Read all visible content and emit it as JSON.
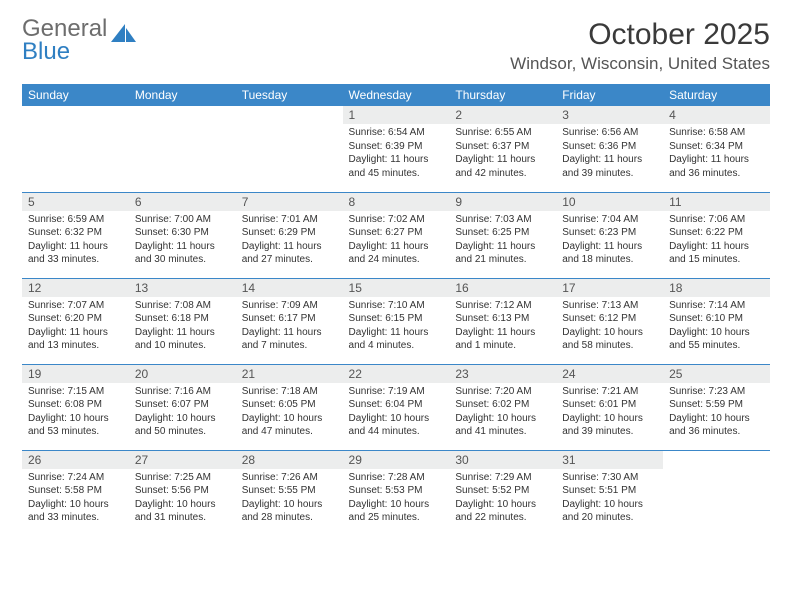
{
  "logo": {
    "word1": "General",
    "word2": "Blue"
  },
  "title": "October 2025",
  "location": "Windsor, Wisconsin, United States",
  "colors": {
    "header_bg": "#3b87c8",
    "header_text": "#ffffff",
    "daynum_bg": "#eceded",
    "border": "#3b87c8",
    "logo_gray": "#6d6d6d",
    "logo_blue": "#2f7fc2"
  },
  "day_headers": [
    "Sunday",
    "Monday",
    "Tuesday",
    "Wednesday",
    "Thursday",
    "Friday",
    "Saturday"
  ],
  "weeks": [
    [
      null,
      null,
      null,
      {
        "n": "1",
        "sunrise": "Sunrise: 6:54 AM",
        "sunset": "Sunset: 6:39 PM",
        "day1": "Daylight: 11 hours",
        "day2": "and 45 minutes."
      },
      {
        "n": "2",
        "sunrise": "Sunrise: 6:55 AM",
        "sunset": "Sunset: 6:37 PM",
        "day1": "Daylight: 11 hours",
        "day2": "and 42 minutes."
      },
      {
        "n": "3",
        "sunrise": "Sunrise: 6:56 AM",
        "sunset": "Sunset: 6:36 PM",
        "day1": "Daylight: 11 hours",
        "day2": "and 39 minutes."
      },
      {
        "n": "4",
        "sunrise": "Sunrise: 6:58 AM",
        "sunset": "Sunset: 6:34 PM",
        "day1": "Daylight: 11 hours",
        "day2": "and 36 minutes."
      }
    ],
    [
      {
        "n": "5",
        "sunrise": "Sunrise: 6:59 AM",
        "sunset": "Sunset: 6:32 PM",
        "day1": "Daylight: 11 hours",
        "day2": "and 33 minutes."
      },
      {
        "n": "6",
        "sunrise": "Sunrise: 7:00 AM",
        "sunset": "Sunset: 6:30 PM",
        "day1": "Daylight: 11 hours",
        "day2": "and 30 minutes."
      },
      {
        "n": "7",
        "sunrise": "Sunrise: 7:01 AM",
        "sunset": "Sunset: 6:29 PM",
        "day1": "Daylight: 11 hours",
        "day2": "and 27 minutes."
      },
      {
        "n": "8",
        "sunrise": "Sunrise: 7:02 AM",
        "sunset": "Sunset: 6:27 PM",
        "day1": "Daylight: 11 hours",
        "day2": "and 24 minutes."
      },
      {
        "n": "9",
        "sunrise": "Sunrise: 7:03 AM",
        "sunset": "Sunset: 6:25 PM",
        "day1": "Daylight: 11 hours",
        "day2": "and 21 minutes."
      },
      {
        "n": "10",
        "sunrise": "Sunrise: 7:04 AM",
        "sunset": "Sunset: 6:23 PM",
        "day1": "Daylight: 11 hours",
        "day2": "and 18 minutes."
      },
      {
        "n": "11",
        "sunrise": "Sunrise: 7:06 AM",
        "sunset": "Sunset: 6:22 PM",
        "day1": "Daylight: 11 hours",
        "day2": "and 15 minutes."
      }
    ],
    [
      {
        "n": "12",
        "sunrise": "Sunrise: 7:07 AM",
        "sunset": "Sunset: 6:20 PM",
        "day1": "Daylight: 11 hours",
        "day2": "and 13 minutes."
      },
      {
        "n": "13",
        "sunrise": "Sunrise: 7:08 AM",
        "sunset": "Sunset: 6:18 PM",
        "day1": "Daylight: 11 hours",
        "day2": "and 10 minutes."
      },
      {
        "n": "14",
        "sunrise": "Sunrise: 7:09 AM",
        "sunset": "Sunset: 6:17 PM",
        "day1": "Daylight: 11 hours",
        "day2": "and 7 minutes."
      },
      {
        "n": "15",
        "sunrise": "Sunrise: 7:10 AM",
        "sunset": "Sunset: 6:15 PM",
        "day1": "Daylight: 11 hours",
        "day2": "and 4 minutes."
      },
      {
        "n": "16",
        "sunrise": "Sunrise: 7:12 AM",
        "sunset": "Sunset: 6:13 PM",
        "day1": "Daylight: 11 hours",
        "day2": "and 1 minute."
      },
      {
        "n": "17",
        "sunrise": "Sunrise: 7:13 AM",
        "sunset": "Sunset: 6:12 PM",
        "day1": "Daylight: 10 hours",
        "day2": "and 58 minutes."
      },
      {
        "n": "18",
        "sunrise": "Sunrise: 7:14 AM",
        "sunset": "Sunset: 6:10 PM",
        "day1": "Daylight: 10 hours",
        "day2": "and 55 minutes."
      }
    ],
    [
      {
        "n": "19",
        "sunrise": "Sunrise: 7:15 AM",
        "sunset": "Sunset: 6:08 PM",
        "day1": "Daylight: 10 hours",
        "day2": "and 53 minutes."
      },
      {
        "n": "20",
        "sunrise": "Sunrise: 7:16 AM",
        "sunset": "Sunset: 6:07 PM",
        "day1": "Daylight: 10 hours",
        "day2": "and 50 minutes."
      },
      {
        "n": "21",
        "sunrise": "Sunrise: 7:18 AM",
        "sunset": "Sunset: 6:05 PM",
        "day1": "Daylight: 10 hours",
        "day2": "and 47 minutes."
      },
      {
        "n": "22",
        "sunrise": "Sunrise: 7:19 AM",
        "sunset": "Sunset: 6:04 PM",
        "day1": "Daylight: 10 hours",
        "day2": "and 44 minutes."
      },
      {
        "n": "23",
        "sunrise": "Sunrise: 7:20 AM",
        "sunset": "Sunset: 6:02 PM",
        "day1": "Daylight: 10 hours",
        "day2": "and 41 minutes."
      },
      {
        "n": "24",
        "sunrise": "Sunrise: 7:21 AM",
        "sunset": "Sunset: 6:01 PM",
        "day1": "Daylight: 10 hours",
        "day2": "and 39 minutes."
      },
      {
        "n": "25",
        "sunrise": "Sunrise: 7:23 AM",
        "sunset": "Sunset: 5:59 PM",
        "day1": "Daylight: 10 hours",
        "day2": "and 36 minutes."
      }
    ],
    [
      {
        "n": "26",
        "sunrise": "Sunrise: 7:24 AM",
        "sunset": "Sunset: 5:58 PM",
        "day1": "Daylight: 10 hours",
        "day2": "and 33 minutes."
      },
      {
        "n": "27",
        "sunrise": "Sunrise: 7:25 AM",
        "sunset": "Sunset: 5:56 PM",
        "day1": "Daylight: 10 hours",
        "day2": "and 31 minutes."
      },
      {
        "n": "28",
        "sunrise": "Sunrise: 7:26 AM",
        "sunset": "Sunset: 5:55 PM",
        "day1": "Daylight: 10 hours",
        "day2": "and 28 minutes."
      },
      {
        "n": "29",
        "sunrise": "Sunrise: 7:28 AM",
        "sunset": "Sunset: 5:53 PM",
        "day1": "Daylight: 10 hours",
        "day2": "and 25 minutes."
      },
      {
        "n": "30",
        "sunrise": "Sunrise: 7:29 AM",
        "sunset": "Sunset: 5:52 PM",
        "day1": "Daylight: 10 hours",
        "day2": "and 22 minutes."
      },
      {
        "n": "31",
        "sunrise": "Sunrise: 7:30 AM",
        "sunset": "Sunset: 5:51 PM",
        "day1": "Daylight: 10 hours",
        "day2": "and 20 minutes."
      },
      null
    ]
  ]
}
